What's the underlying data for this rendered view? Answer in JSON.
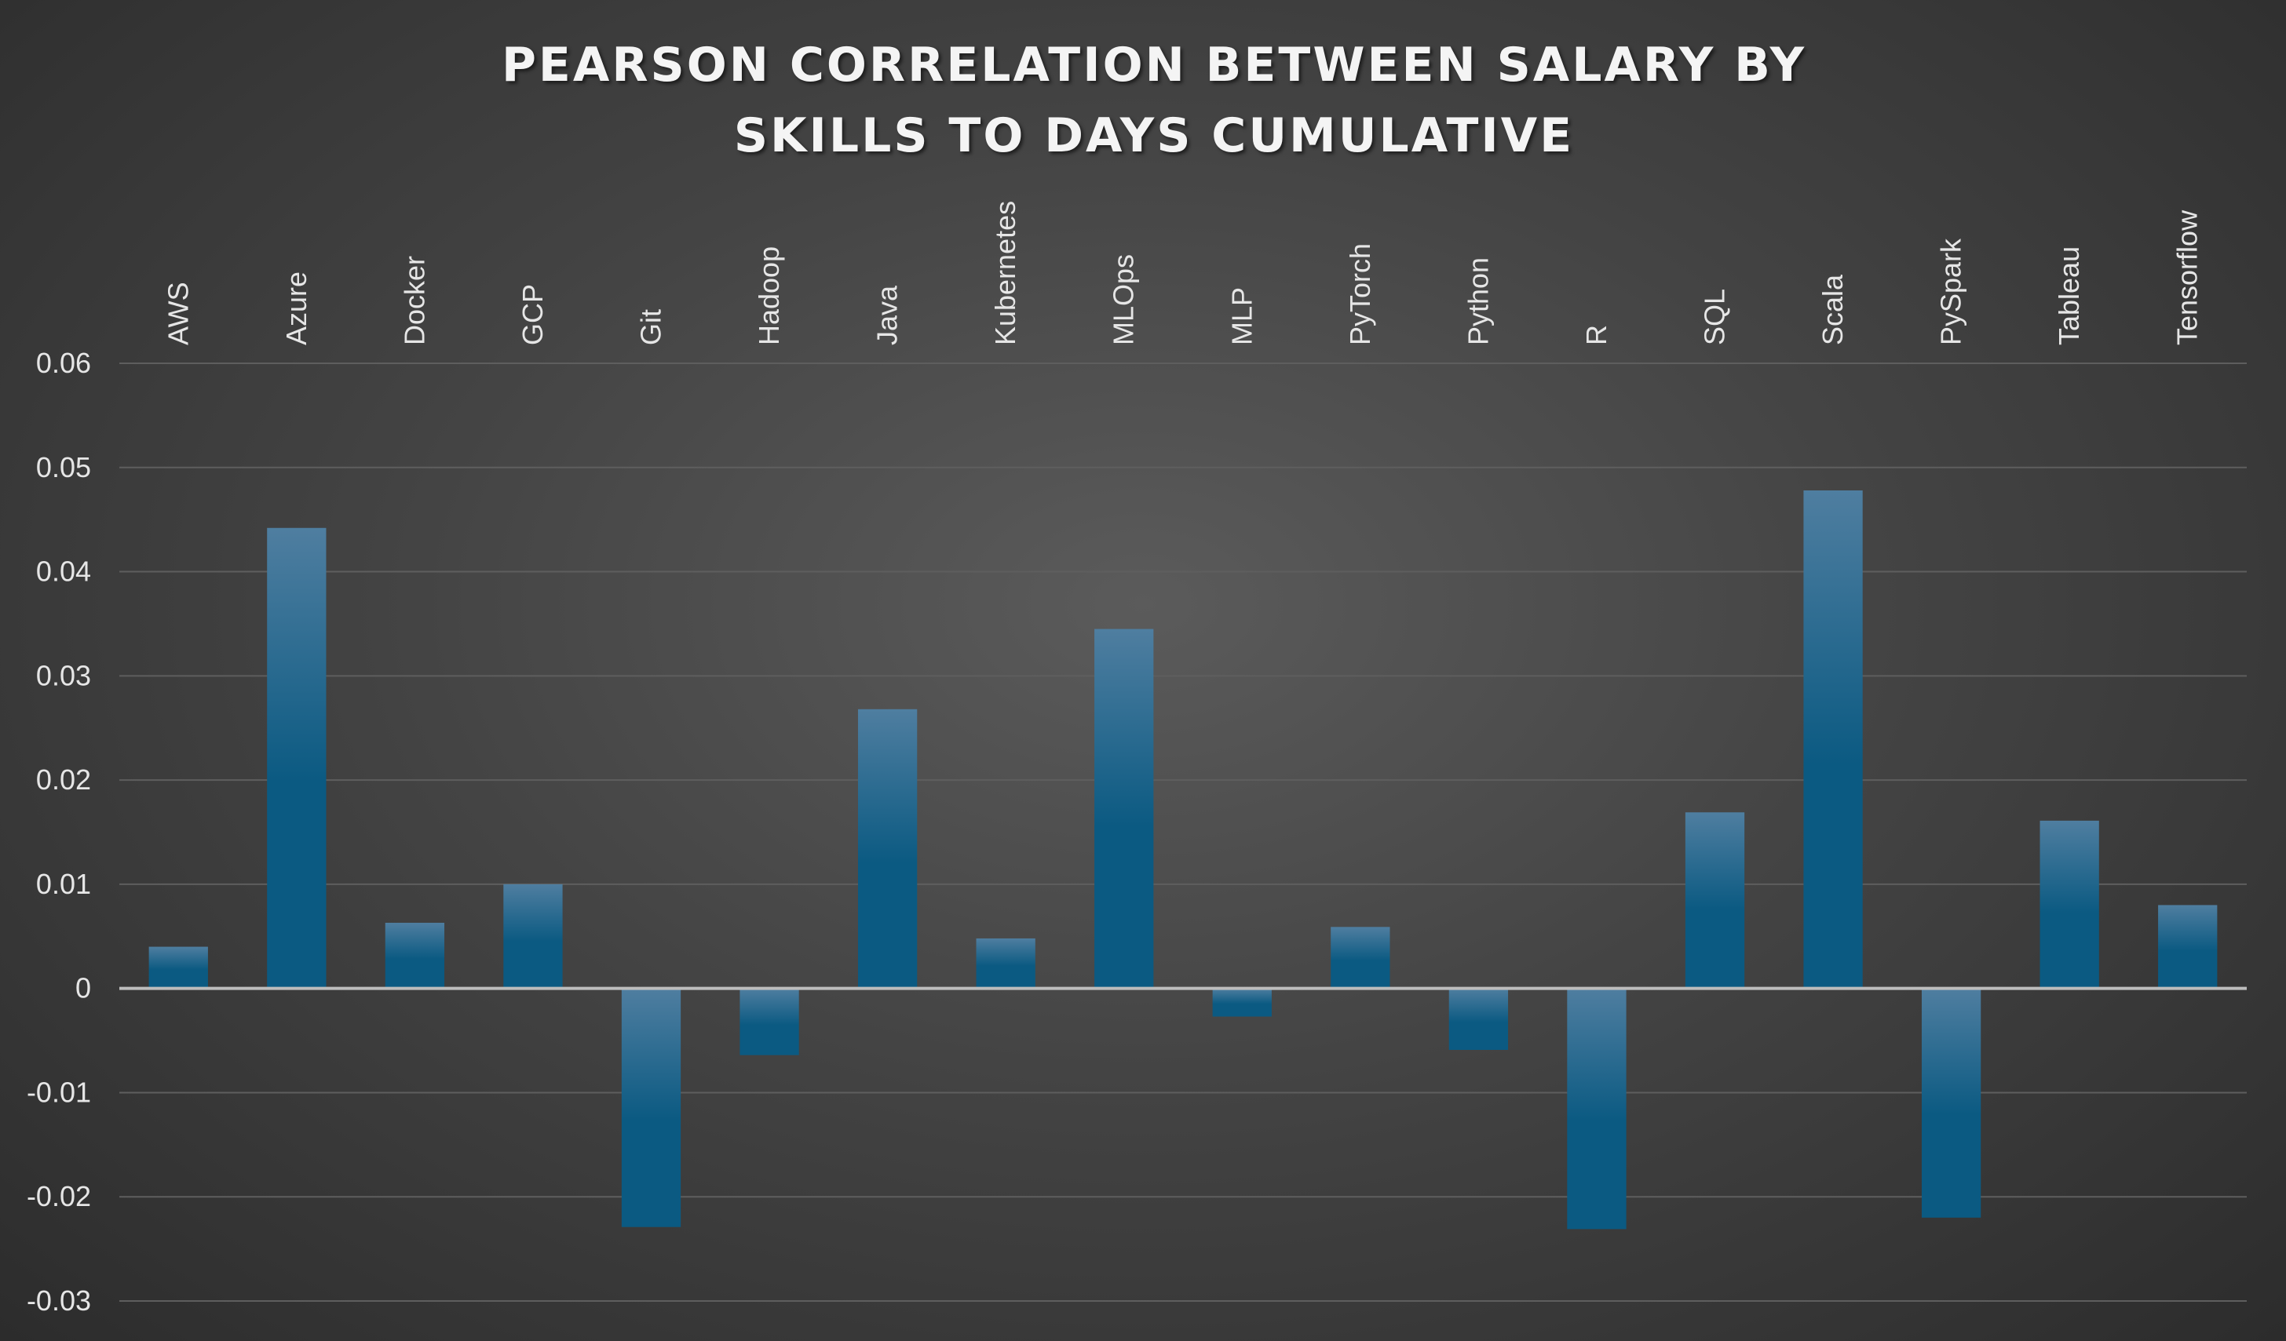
{
  "chart_data": {
    "type": "bar",
    "title": "PEARSON CORRELATION BETWEEN SALARY BY SKILLS TO DAYS CUMULATIVE",
    "xlabel": "",
    "ylabel": "",
    "categories": [
      "AWS",
      "Azure",
      "Docker",
      "GCP",
      "Git",
      "Hadoop",
      "Java",
      "Kubernetes",
      "MLOps",
      "MLP",
      "PyTorch",
      "Python",
      "R",
      "SQL",
      "Scala",
      "PySpark",
      "Tableau",
      "Tensorflow"
    ],
    "values": [
      0.004,
      0.0442,
      0.0063,
      0.01,
      -0.0229,
      -0.0064,
      0.0268,
      0.0048,
      0.0345,
      -0.0027,
      0.0059,
      -0.0059,
      -0.0231,
      0.0169,
      0.0478,
      -0.022,
      0.0161,
      0.008
    ],
    "ylim": [
      -0.03,
      0.06
    ],
    "yticks": [
      "0.06",
      "0.05",
      "0.04",
      "0.03",
      "0.02",
      "0.01",
      "0",
      "-0.01",
      "-0.02",
      "-0.03"
    ],
    "ytick_values": [
      0.06,
      0.05,
      0.04,
      0.03,
      0.02,
      0.01,
      0,
      -0.01,
      -0.02,
      -0.03
    ],
    "grid": true,
    "legend": "none",
    "category_labels_position": "top, rotated vertical",
    "colors": {
      "bar_top": "#4f7ea0",
      "bar_bottom": "#0b5a82",
      "gridline": "#5e5e5e",
      "zero_line": "#bdbdbd",
      "text": "#e6e6e6"
    }
  }
}
